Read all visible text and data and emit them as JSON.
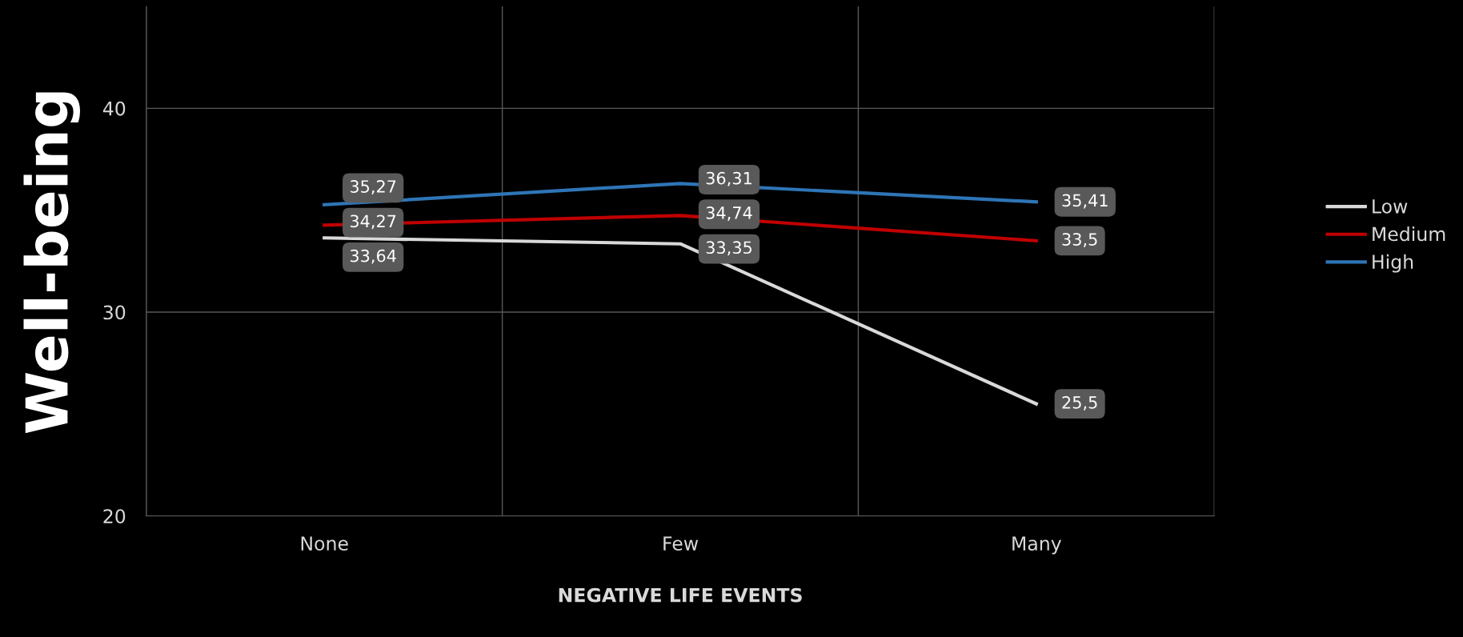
{
  "chart_data": {
    "type": "line",
    "xlabel": "NEGATIVE LIFE EVENTS",
    "ylabel": "Well-being",
    "categories": [
      "None",
      "Few",
      "Many"
    ],
    "series": [
      {
        "name": "Low",
        "color": "#d9d9d9",
        "values": [
          33.64,
          33.35,
          25.5
        ],
        "value_labels": [
          "33,64",
          "33,35",
          "25,5"
        ]
      },
      {
        "name": "Medium",
        "color": "#c00000",
        "values": [
          34.27,
          34.74,
          33.5
        ],
        "value_labels": [
          "34,27",
          "34,74",
          "33,5"
        ]
      },
      {
        "name": "High",
        "color": "#2e75b6",
        "values": [
          35.27,
          36.31,
          35.41
        ],
        "value_labels": [
          "35,27",
          "36,31",
          "35,41"
        ]
      }
    ],
    "ylim": [
      20,
      45
    ],
    "yticks": [
      20,
      30,
      40
    ],
    "grid": true,
    "legend": "right",
    "marker": "none",
    "line_style": "solid"
  }
}
